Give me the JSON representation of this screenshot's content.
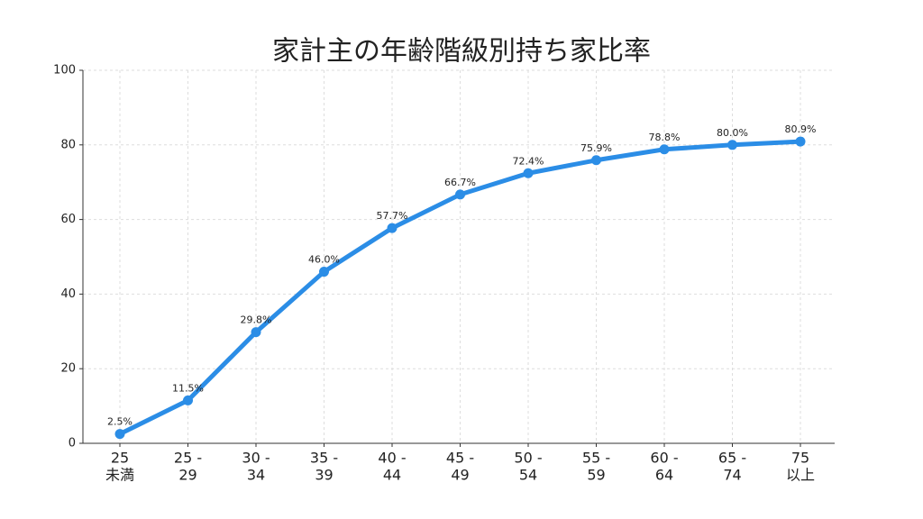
{
  "chart_data": {
    "type": "line",
    "title": "家計主の年齢階級別持ち家比率",
    "categories": [
      [
        "25",
        "未満"
      ],
      [
        "25 -",
        "29"
      ],
      [
        "30 -",
        "34"
      ],
      [
        "35 -",
        "39"
      ],
      [
        "40 -",
        "44"
      ],
      [
        "45 -",
        "49"
      ],
      [
        "50 -",
        "54"
      ],
      [
        "55 -",
        "59"
      ],
      [
        "60 -",
        "64"
      ],
      [
        "65 -",
        "74"
      ],
      [
        "75",
        "以上"
      ]
    ],
    "series": [
      {
        "name": "持ち家比率",
        "color": "#2b8de6",
        "values": [
          2.5,
          11.5,
          29.8,
          46.0,
          57.7,
          66.7,
          72.4,
          75.9,
          78.8,
          80.0,
          80.9
        ],
        "value_labels": [
          "2.5%",
          "11.5%",
          "29.8%",
          "46.0%",
          "57.7%",
          "66.7%",
          "72.4%",
          "75.9%",
          "78.8%",
          "80.0%",
          "80.9%"
        ]
      }
    ],
    "ylim": [
      0,
      100
    ],
    "yticks": [
      0,
      20,
      40,
      60,
      80,
      100
    ],
    "grid": true
  }
}
